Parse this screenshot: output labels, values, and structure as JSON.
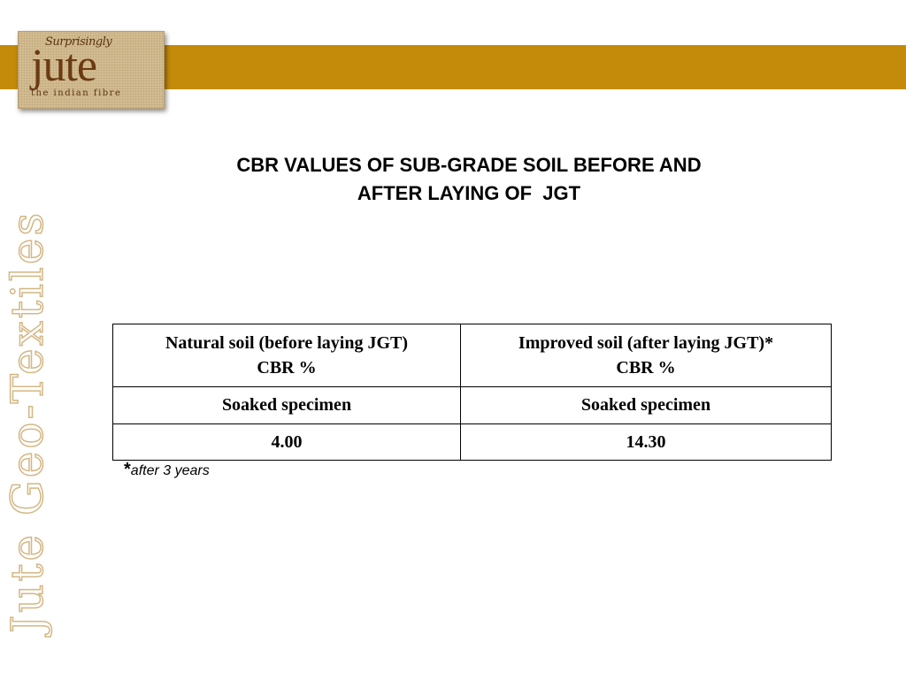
{
  "logo": {
    "script_text": "Surprisingly",
    "word": "jute",
    "tagline": "the indian fibre"
  },
  "side_text": "Jute Geo-Textiles",
  "title": {
    "line1": "CBR VALUES OF SUB-GRADE SOIL BEFORE AND",
    "line2": "AFTER LAYING OF  JGT"
  },
  "table": {
    "header": [
      {
        "line1": "Natural soil (before laying JGT)",
        "line2": "CBR %"
      },
      {
        "line1": "Improved soil (after laying JGT)*",
        "line2": "CBR %"
      }
    ],
    "rows": [
      [
        "Soaked specimen",
        "Soaked specimen"
      ],
      [
        "4.00",
        "14.30"
      ]
    ]
  },
  "footnote": {
    "marker": "*",
    "text": "after 3 years"
  },
  "colors": {
    "band": "#c48a09",
    "logo_bg": "#d4bd92",
    "logo_text": "#6b3a12",
    "side_text_outline": "#d3b784"
  }
}
